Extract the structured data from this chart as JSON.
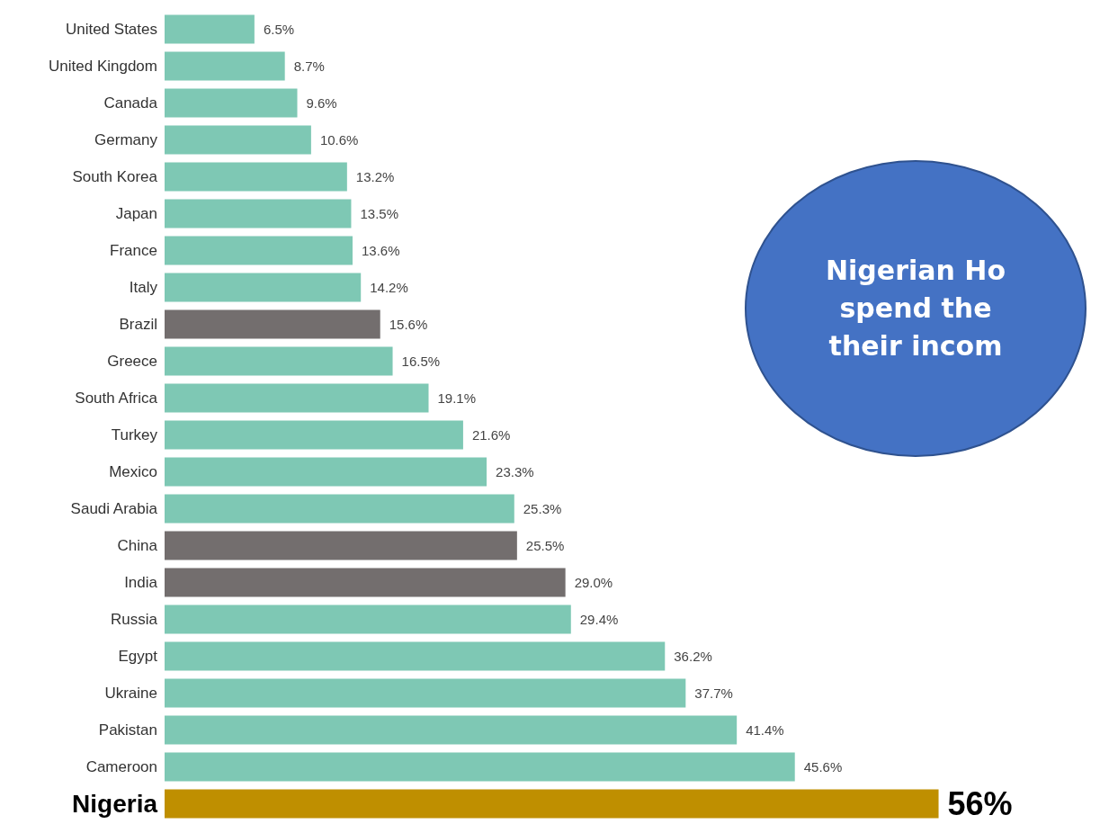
{
  "chart_data": {
    "type": "bar",
    "orientation": "horizontal",
    "categories": [
      "United States",
      "United Kingdom",
      "Canada",
      "Germany",
      "South Korea",
      "Japan",
      "France",
      "Italy",
      "Brazil",
      "Greece",
      "South Africa",
      "Turkey",
      "Mexico",
      "Saudi Arabia",
      "China",
      "India",
      "Russia",
      "Egypt",
      "Ukraine",
      "Pakistan",
      "Cameroon",
      "Nigeria"
    ],
    "values": [
      6.5,
      8.7,
      9.6,
      10.6,
      13.2,
      13.5,
      13.6,
      14.2,
      15.6,
      16.5,
      19.1,
      21.6,
      23.3,
      25.3,
      25.5,
      29.0,
      29.4,
      36.2,
      37.7,
      41.4,
      45.6,
      56
    ],
    "colors": [
      "#7ec8b4",
      "#7ec8b4",
      "#7ec8b4",
      "#7ec8b4",
      "#7ec8b4",
      "#7ec8b4",
      "#7ec8b4",
      "#7ec8b4",
      "#736e6e",
      "#7ec8b4",
      "#7ec8b4",
      "#7ec8b4",
      "#7ec8b4",
      "#7ec8b4",
      "#736e6e",
      "#736e6e",
      "#7ec8b4",
      "#7ec8b4",
      "#7ec8b4",
      "#7ec8b4",
      "#7ec8b4",
      "#bf8f00"
    ],
    "value_labels": [
      "6.5%",
      "8.7%",
      "9.6%",
      "10.6%",
      "13.2%",
      "13.5%",
      "13.6%",
      "14.2%",
      "15.6%",
      "16.5%",
      "19.1%",
      "21.6%",
      "23.3%",
      "25.3%",
      "25.5%",
      "29.0%",
      "29.4%",
      "36.2%",
      "37.7%",
      "41.4%",
      "45.6%",
      "56%"
    ],
    "annotations": [
      "Nigerian Ho\nspend the\ntheir incom"
    ]
  }
}
